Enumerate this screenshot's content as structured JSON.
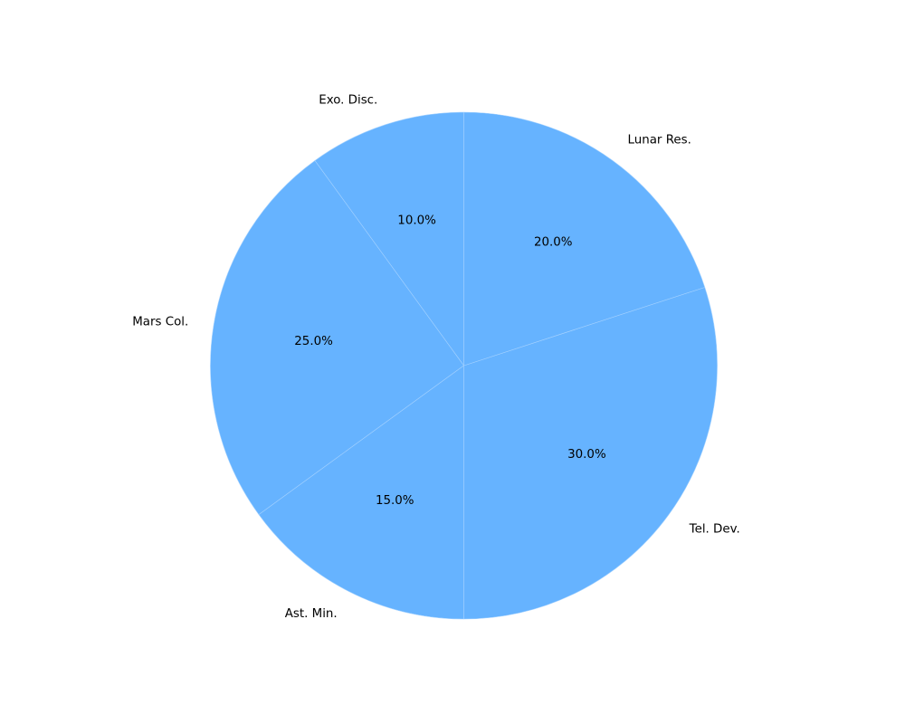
{
  "chart_data": {
    "type": "pie",
    "categories": [
      "Exo. Disc.",
      "Mars Col.",
      "Ast. Min.",
      "Tel. Dev.",
      "Lunar Res."
    ],
    "values": [
      10.0,
      25.0,
      15.0,
      30.0,
      20.0
    ],
    "percent_labels": [
      "10.0%",
      "25.0%",
      "15.0%",
      "30.0%",
      "20.0%"
    ],
    "start_angle_deg": 90,
    "direction": "counterclockwise",
    "legend": "none",
    "colors": {
      "slice_fill": "#66b3ff",
      "slice_edge": "#a3d1ff",
      "text": "#000000"
    }
  }
}
